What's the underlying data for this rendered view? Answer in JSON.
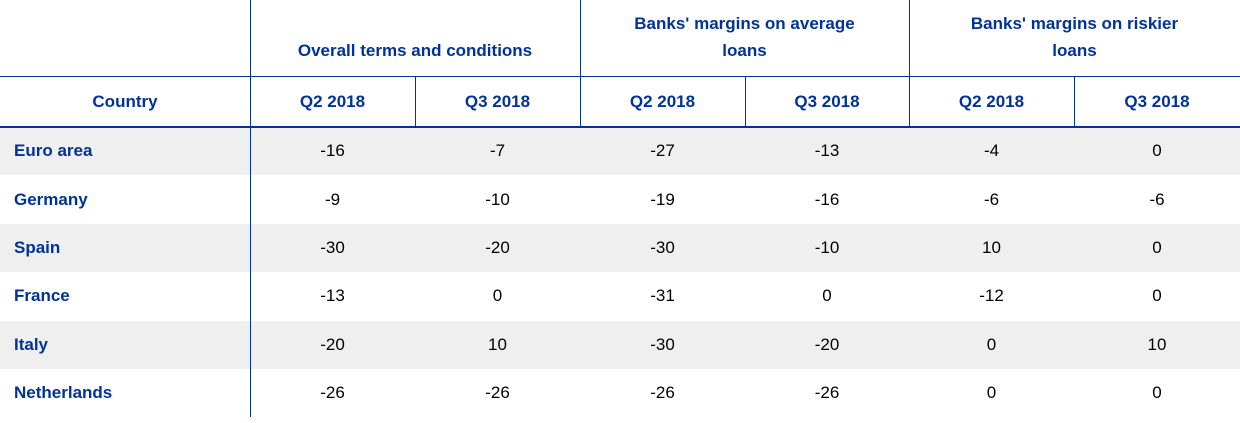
{
  "table": {
    "groups": [
      "Overall terms and conditions",
      "Banks' margins on average loans",
      "Banks' margins on riskier loans"
    ],
    "columns": [
      "Country",
      "Q2 2018",
      "Q3 2018",
      "Q2 2018",
      "Q3 2018",
      "Q2 2018",
      "Q3 2018"
    ],
    "rows": [
      {
        "country": "Euro area",
        "values": [
          -16,
          -7,
          -27,
          -13,
          -4,
          0
        ]
      },
      {
        "country": "Germany",
        "values": [
          -9,
          -10,
          -19,
          -16,
          -6,
          -6
        ]
      },
      {
        "country": "Spain",
        "values": [
          -30,
          -20,
          -30,
          -10,
          10,
          0
        ]
      },
      {
        "country": "France",
        "values": [
          -13,
          0,
          -31,
          0,
          -12,
          0
        ]
      },
      {
        "country": "Italy",
        "values": [
          -20,
          10,
          -30,
          -20,
          0,
          10
        ]
      },
      {
        "country": "Netherlands",
        "values": [
          -26,
          -26,
          -26,
          -26,
          0,
          0
        ]
      }
    ]
  }
}
